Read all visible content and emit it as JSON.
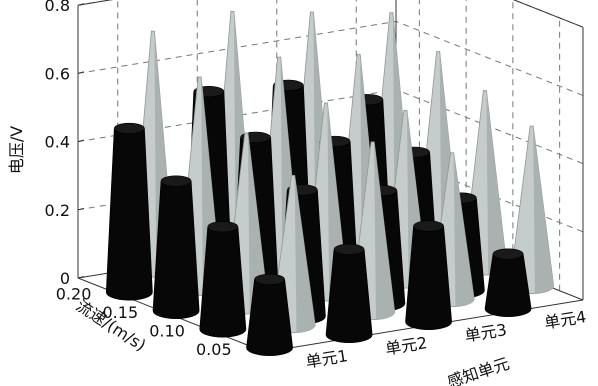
{
  "chart_data": {
    "type": "3d-cone",
    "title": "",
    "zlabel": "电压/V",
    "ylabel": "流速/(m/s)",
    "xlabel": "感知单元",
    "x_categories": [
      "单元1",
      "单元2",
      "单元3",
      "单元4"
    ],
    "y_ticks": [
      "0.20",
      "0.15",
      "0.10",
      "0.05"
    ],
    "z_ticks": [
      "0",
      "0.2",
      "0.4",
      "0.6",
      "0.8"
    ],
    "zlim": [
      0,
      0.8
    ],
    "series": [
      {
        "color": "#0a0a0a",
        "values": [
          [
            0.48,
            0.38,
            0.3,
            0.2
          ],
          [
            0.55,
            0.47,
            0.37,
            0.25
          ],
          [
            0.53,
            0.42,
            0.33,
            0.28
          ],
          [
            0.45,
            0.35,
            0.27,
            0.16
          ]
        ]
      },
      {
        "color": "#c8cccc",
        "values": [
          [
            0.7,
            0.62,
            0.51,
            0.44
          ],
          [
            0.72,
            0.64,
            0.56,
            0.5
          ],
          [
            0.68,
            0.61,
            0.5,
            0.43
          ],
          [
            0.64,
            0.58,
            0.52,
            0.47
          ]
        ]
      }
    ],
    "grid": true
  }
}
